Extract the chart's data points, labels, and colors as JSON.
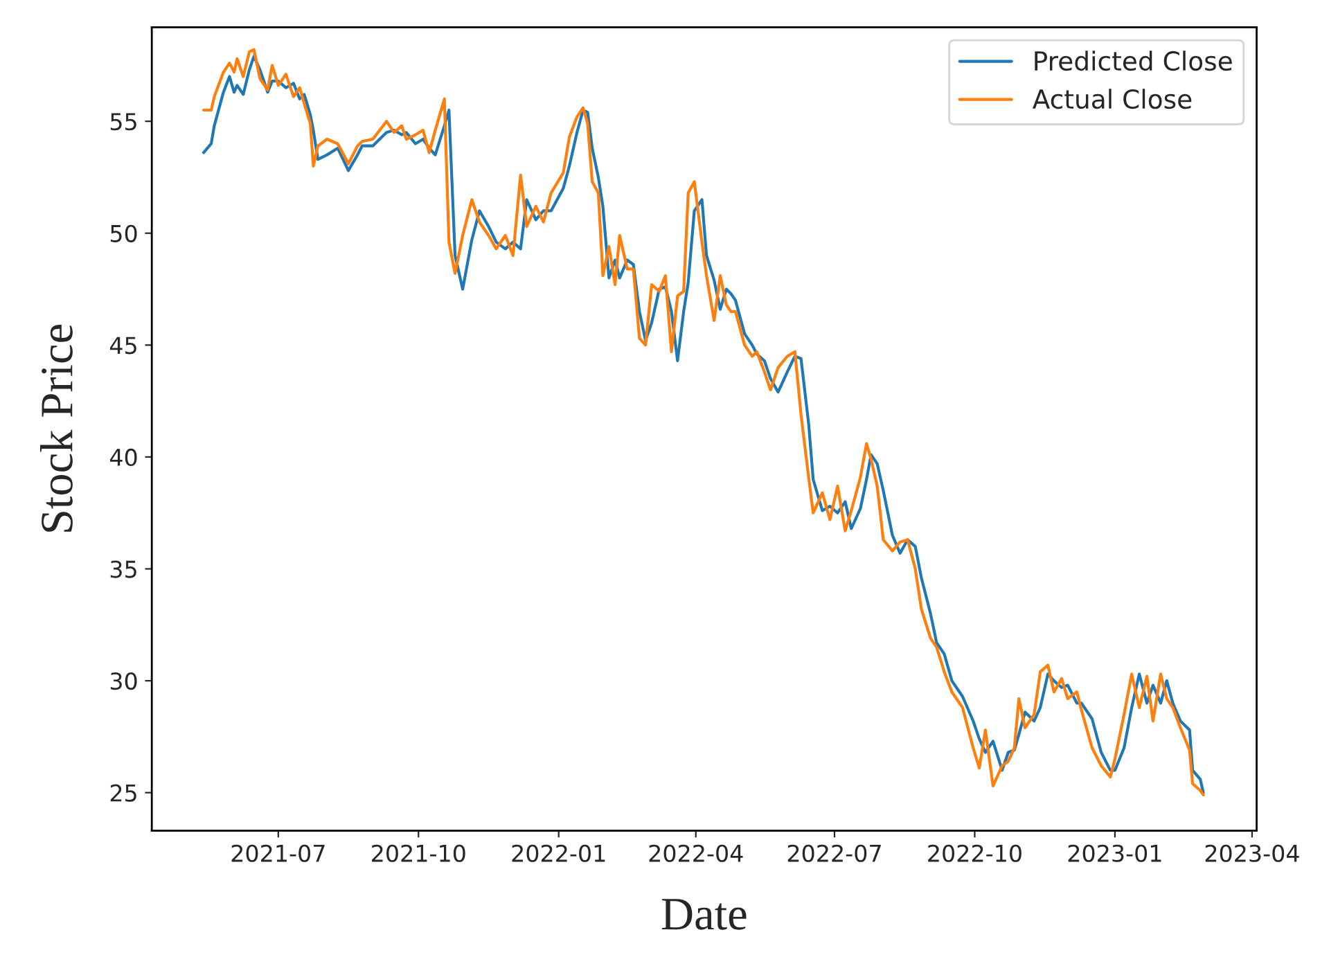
{
  "chart_data": {
    "type": "line",
    "xlabel": "Date",
    "ylabel": "Stock Price",
    "legend": "top right",
    "grid": false,
    "ylim": [
      23.3,
      59.2
    ],
    "yticks": [
      25,
      30,
      35,
      40,
      45,
      50,
      55
    ],
    "xlim": [
      "2021-04-09",
      "2023-04-04"
    ],
    "xticks": [
      {
        "value": "2021-07-01",
        "label": "2021-07"
      },
      {
        "value": "2021-10-01",
        "label": "2021-10"
      },
      {
        "value": "2022-01-01",
        "label": "2022-01"
      },
      {
        "value": "2022-04-01",
        "label": "2022-04"
      },
      {
        "value": "2022-07-01",
        "label": "2022-07"
      },
      {
        "value": "2022-10-01",
        "label": "2022-10"
      },
      {
        "value": "2023-01-01",
        "label": "2023-01"
      },
      {
        "value": "2023-04-01",
        "label": "2023-04"
      }
    ],
    "x": [
      "2021-05-13",
      "2021-05-18",
      "2021-05-20",
      "2021-05-26",
      "2021-05-30",
      "2021-06-02",
      "2021-06-04",
      "2021-06-08",
      "2021-06-12",
      "2021-06-15",
      "2021-06-19",
      "2021-06-24",
      "2021-06-27",
      "2021-07-01",
      "2021-07-06",
      "2021-07-11",
      "2021-07-15",
      "2021-07-18",
      "2021-07-22",
      "2021-07-24",
      "2021-07-27",
      "2021-08-02",
      "2021-08-09",
      "2021-08-16",
      "2021-08-22",
      "2021-08-25",
      "2021-09-01",
      "2021-09-10",
      "2021-09-15",
      "2021-09-20",
      "2021-09-23",
      "2021-09-29",
      "2021-10-04",
      "2021-10-08",
      "2021-10-12",
      "2021-10-18",
      "2021-10-21",
      "2021-10-25",
      "2021-10-30",
      "2021-11-05",
      "2021-11-10",
      "2021-11-16",
      "2021-11-21",
      "2021-11-27",
      "2021-12-02",
      "2021-12-07",
      "2021-12-11",
      "2021-12-17",
      "2021-12-22",
      "2021-12-27",
      "2022-01-04",
      "2022-01-08",
      "2022-01-13",
      "2022-01-17",
      "2022-01-20",
      "2022-01-23",
      "2022-01-27",
      "2022-01-30",
      "2022-02-03",
      "2022-02-07",
      "2022-02-10",
      "2022-02-15",
      "2022-02-19",
      "2022-02-23",
      "2022-02-27",
      "2022-03-03",
      "2022-03-08",
      "2022-03-12",
      "2022-03-16",
      "2022-03-20",
      "2022-03-24",
      "2022-03-27",
      "2022-03-31",
      "2022-04-05",
      "2022-04-08",
      "2022-04-13",
      "2022-04-17",
      "2022-04-21",
      "2022-04-24",
      "2022-04-27",
      "2022-05-03",
      "2022-05-08",
      "2022-05-11",
      "2022-05-16",
      "2022-05-20",
      "2022-05-25",
      "2022-05-31",
      "2022-06-05",
      "2022-06-09",
      "2022-06-14",
      "2022-06-17",
      "2022-06-23",
      "2022-06-28",
      "2022-07-03",
      "2022-07-08",
      "2022-07-12",
      "2022-07-18",
      "2022-07-22",
      "2022-07-25",
      "2022-07-29",
      "2022-08-02",
      "2022-08-08",
      "2022-08-13",
      "2022-08-18",
      "2022-08-23",
      "2022-08-27",
      "2022-09-02",
      "2022-09-06",
      "2022-09-11",
      "2022-09-16",
      "2022-09-23",
      "2022-09-30",
      "2022-10-04",
      "2022-10-08",
      "2022-10-13",
      "2022-10-19",
      "2022-10-23",
      "2022-10-27",
      "2022-10-30",
      "2022-11-03",
      "2022-11-09",
      "2022-11-13",
      "2022-11-18",
      "2022-11-22",
      "2022-11-27",
      "2022-12-01",
      "2022-12-07",
      "2022-12-10",
      "2022-12-17",
      "2022-12-23",
      "2022-12-29",
      "2023-01-01",
      "2023-01-07",
      "2023-01-12",
      "2023-01-17",
      "2023-01-22",
      "2023-01-26",
      "2023-01-31",
      "2023-02-04",
      "2023-02-08",
      "2023-02-13",
      "2023-02-19",
      "2023-02-21",
      "2023-02-26",
      "2023-02-28"
    ],
    "series": [
      {
        "name": "Predicted Close",
        "color": "#1f77b4",
        "values": [
          53.6,
          54.0,
          54.8,
          56.3,
          57.0,
          56.3,
          56.6,
          56.2,
          57.3,
          57.9,
          57.3,
          56.3,
          56.8,
          56.8,
          56.5,
          56.7,
          56.0,
          56.2,
          55.3,
          54.6,
          53.3,
          53.5,
          53.8,
          52.8,
          53.5,
          53.9,
          53.9,
          54.5,
          54.6,
          54.4,
          54.5,
          54.0,
          54.2,
          53.8,
          53.5,
          54.8,
          55.5,
          49.0,
          47.5,
          49.7,
          51.0,
          50.3,
          49.6,
          49.3,
          49.6,
          49.3,
          51.5,
          50.6,
          51.0,
          51.0,
          52.0,
          53.0,
          54.5,
          55.5,
          55.4,
          53.8,
          52.5,
          51.2,
          48.0,
          48.8,
          48.0,
          48.8,
          48.6,
          46.5,
          45.2,
          46.0,
          47.5,
          47.6,
          46.5,
          44.3,
          46.5,
          47.8,
          51.0,
          51.5,
          49.0,
          47.9,
          46.6,
          47.5,
          47.3,
          47.0,
          45.5,
          45.0,
          44.6,
          44.3,
          43.5,
          42.9,
          43.8,
          44.5,
          44.4,
          41.5,
          39.0,
          37.6,
          37.8,
          37.5,
          38.0,
          36.8,
          37.7,
          39.0,
          40.1,
          39.7,
          38.5,
          36.5,
          35.7,
          36.3,
          36.0,
          34.6,
          33.0,
          31.7,
          31.2,
          30.0,
          29.3,
          28.2,
          27.4,
          26.8,
          27.3,
          26.0,
          26.8,
          26.9,
          27.6,
          28.6,
          28.2,
          28.8,
          30.3,
          30.0,
          29.7,
          29.8,
          29.0,
          29.0,
          28.3,
          26.8,
          26.0,
          26.0,
          27.0,
          28.8,
          30.3,
          29.0,
          29.8,
          29.0,
          30.0,
          29.0,
          28.2,
          27.8,
          26.0,
          25.6,
          25.0
        ]
      },
      {
        "name": "Actual Close",
        "color": "#ff7f0e",
        "values": [
          55.5,
          55.5,
          56.1,
          57.2,
          57.6,
          57.2,
          57.8,
          57.0,
          58.1,
          58.2,
          56.9,
          56.4,
          57.5,
          56.6,
          57.1,
          56.1,
          56.5,
          55.8,
          54.9,
          53.0,
          53.9,
          54.2,
          54.0,
          53.1,
          53.9,
          54.1,
          54.2,
          55.0,
          54.5,
          54.8,
          54.2,
          54.4,
          54.6,
          53.6,
          54.6,
          56.0,
          49.6,
          48.2,
          49.9,
          51.5,
          50.5,
          49.9,
          49.3,
          49.9,
          49.0,
          52.6,
          50.3,
          51.2,
          50.5,
          51.8,
          52.7,
          54.3,
          55.2,
          55.6,
          54.9,
          52.3,
          51.8,
          48.1,
          49.4,
          47.7,
          49.9,
          48.4,
          48.4,
          45.3,
          45.0,
          47.7,
          47.4,
          48.1,
          44.7,
          47.2,
          47.4,
          51.8,
          52.3,
          49.6,
          48.1,
          46.1,
          48.1,
          46.8,
          46.5,
          46.5,
          45.0,
          44.5,
          44.7,
          43.8,
          43.0,
          44.0,
          44.5,
          44.7,
          41.9,
          39.1,
          37.5,
          38.4,
          37.2,
          38.7,
          36.7,
          37.6,
          39.1,
          40.6,
          39.9,
          38.7,
          36.3,
          35.8,
          36.2,
          36.3,
          35.0,
          33.2,
          31.9,
          31.5,
          30.4,
          29.5,
          28.8,
          27.0,
          26.1,
          27.8,
          25.3,
          26.2,
          26.4,
          27.0,
          29.2,
          27.9,
          28.5,
          30.4,
          30.7,
          29.5,
          30.1,
          29.2,
          29.5,
          28.7,
          27.0,
          26.2,
          25.7,
          26.5,
          28.5,
          30.3,
          28.8,
          30.2,
          28.2,
          30.3,
          29.2,
          28.8,
          27.9,
          26.9,
          25.4,
          25.1,
          24.9
        ]
      }
    ]
  }
}
